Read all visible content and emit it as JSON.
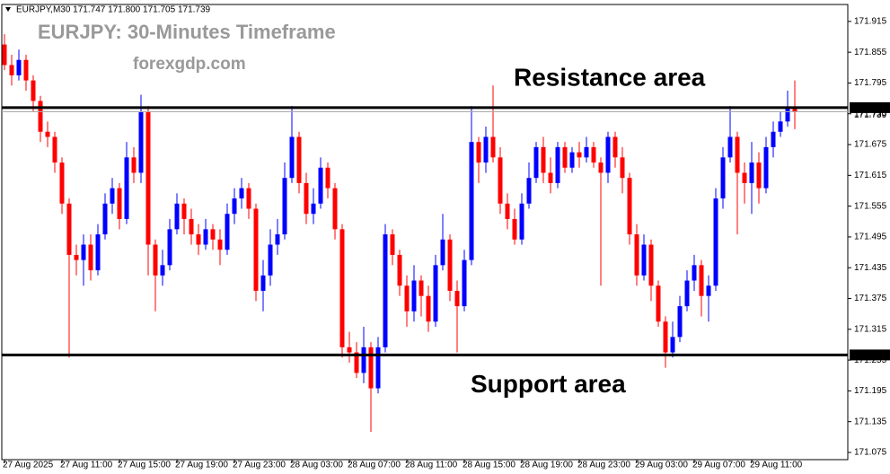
{
  "chart_data": {
    "type": "candlestick",
    "header": "EURJPY,M30  171.747 171.800 171.705 171.739",
    "title": "EURJPY: 30-Minutes Timeframe",
    "subtitle": "forexgdp.com",
    "bull_color": "#0000ff",
    "bear_color": "#ff0000",
    "ylim": [
      171.061,
      171.948
    ],
    "yticks": [
      171.915,
      171.855,
      171.795,
      171.735,
      171.675,
      171.615,
      171.555,
      171.495,
      171.435,
      171.375,
      171.315,
      171.255,
      171.195,
      171.135,
      171.075
    ],
    "levels": [
      {
        "label": "Resistance area",
        "value": 171.747
      },
      {
        "label": "Support area",
        "value": 171.265
      }
    ],
    "bid": 171.739,
    "categories": [
      "27 Aug 2025",
      null,
      null,
      null,
      null,
      null,
      null,
      null,
      "27 Aug 11:00",
      null,
      null,
      null,
      null,
      null,
      null,
      null,
      "27 Aug 15:00",
      null,
      null,
      null,
      null,
      null,
      null,
      null,
      "27 Aug 19:00",
      null,
      null,
      null,
      null,
      null,
      null,
      null,
      "27 Aug 23:00",
      null,
      null,
      null,
      null,
      null,
      null,
      null,
      "28 Aug 03:00",
      null,
      null,
      null,
      null,
      null,
      null,
      null,
      "28 Aug 07:00",
      null,
      null,
      null,
      null,
      null,
      null,
      null,
      "28 Aug 11:00",
      null,
      null,
      null,
      null,
      null,
      null,
      null,
      "28 Aug 15:00",
      null,
      null,
      null,
      null,
      null,
      null,
      null,
      "28 Aug 19:00",
      null,
      null,
      null,
      null,
      null,
      null,
      null,
      "28 Aug 23:00",
      null,
      null,
      null,
      null,
      null,
      null,
      null,
      "29 Aug 03:00",
      null,
      null,
      null,
      null,
      null,
      null,
      null,
      "29 Aug 07:00",
      null,
      null,
      null,
      null,
      null,
      null,
      null,
      "29 Aug 11:00",
      null,
      null,
      null,
      null,
      null,
      null
    ],
    "ohlc": [
      [
        171.87,
        171.89,
        171.82,
        171.83
      ],
      [
        171.83,
        171.85,
        171.79,
        171.81
      ],
      [
        171.81,
        171.86,
        171.8,
        171.84
      ],
      [
        171.84,
        171.85,
        171.78,
        171.8
      ],
      [
        171.8,
        171.81,
        171.74,
        171.76
      ],
      [
        171.76,
        171.77,
        171.68,
        171.7
      ],
      [
        171.7,
        171.72,
        171.67,
        171.69
      ],
      [
        171.69,
        171.7,
        171.62,
        171.64
      ],
      [
        171.64,
        171.65,
        171.54,
        171.56
      ],
      [
        171.56,
        171.57,
        171.26,
        171.46
      ],
      [
        171.46,
        171.48,
        171.42,
        171.45
      ],
      [
        171.45,
        171.5,
        171.4,
        171.48
      ],
      [
        171.48,
        171.5,
        171.41,
        171.43
      ],
      [
        171.43,
        171.52,
        171.42,
        171.5
      ],
      [
        171.5,
        171.58,
        171.49,
        171.56
      ],
      [
        171.56,
        171.61,
        171.54,
        171.59
      ],
      [
        171.59,
        171.6,
        171.51,
        171.53
      ],
      [
        171.53,
        171.68,
        171.52,
        171.65
      ],
      [
        171.65,
        171.67,
        171.6,
        171.62
      ],
      [
        171.62,
        171.772,
        171.6,
        171.74
      ],
      [
        171.74,
        171.75,
        171.42,
        171.48
      ],
      [
        171.48,
        171.49,
        171.35,
        171.42
      ],
      [
        171.42,
        171.47,
        171.4,
        171.44
      ],
      [
        171.44,
        171.53,
        171.43,
        171.51
      ],
      [
        171.51,
        171.58,
        171.5,
        171.56
      ],
      [
        171.56,
        171.57,
        171.5,
        171.53
      ],
      [
        171.53,
        171.55,
        171.48,
        171.5
      ],
      [
        171.5,
        171.52,
        171.46,
        171.48
      ],
      [
        171.48,
        171.53,
        171.47,
        171.51
      ],
      [
        171.51,
        171.52,
        171.47,
        171.49
      ],
      [
        171.49,
        171.51,
        171.44,
        171.47
      ],
      [
        171.47,
        171.56,
        171.46,
        171.54
      ],
      [
        171.54,
        171.59,
        171.52,
        171.57
      ],
      [
        171.57,
        171.61,
        171.55,
        171.59
      ],
      [
        171.59,
        171.6,
        171.53,
        171.55
      ],
      [
        171.55,
        171.56,
        171.37,
        171.39
      ],
      [
        171.39,
        171.45,
        171.35,
        171.42
      ],
      [
        171.42,
        171.51,
        171.4,
        171.48
      ],
      [
        171.48,
        171.53,
        171.46,
        171.5
      ],
      [
        171.5,
        171.64,
        171.49,
        171.61
      ],
      [
        171.61,
        171.75,
        171.6,
        171.69
      ],
      [
        171.69,
        171.7,
        171.58,
        171.6
      ],
      [
        171.6,
        171.62,
        171.52,
        171.54
      ],
      [
        171.54,
        171.59,
        171.52,
        171.56
      ],
      [
        171.56,
        171.65,
        171.55,
        171.63
      ],
      [
        171.63,
        171.64,
        171.57,
        171.59
      ],
      [
        171.59,
        171.6,
        171.49,
        171.51
      ],
      [
        171.51,
        171.52,
        171.26,
        171.28
      ],
      [
        171.28,
        171.31,
        171.25,
        171.27
      ],
      [
        171.27,
        171.29,
        171.22,
        171.23
      ],
      [
        171.23,
        171.32,
        171.21,
        171.28
      ],
      [
        171.28,
        171.29,
        171.115,
        171.2
      ],
      [
        171.2,
        171.3,
        171.19,
        171.28
      ],
      [
        171.28,
        171.52,
        171.27,
        171.5
      ],
      [
        171.5,
        171.51,
        171.44,
        171.46
      ],
      [
        171.46,
        171.47,
        171.38,
        171.4
      ],
      [
        171.4,
        171.42,
        171.32,
        171.35
      ],
      [
        171.35,
        171.44,
        171.33,
        171.41
      ],
      [
        171.41,
        171.42,
        171.34,
        171.38
      ],
      [
        171.38,
        171.4,
        171.31,
        171.33
      ],
      [
        171.33,
        171.46,
        171.32,
        171.44
      ],
      [
        171.44,
        171.54,
        171.43,
        171.49
      ],
      [
        171.49,
        171.5,
        171.37,
        171.39
      ],
      [
        171.39,
        171.41,
        171.27,
        171.36
      ],
      [
        171.36,
        171.47,
        171.35,
        171.45
      ],
      [
        171.45,
        171.75,
        171.44,
        171.68
      ],
      [
        171.68,
        171.69,
        171.6,
        171.64
      ],
      [
        171.64,
        171.71,
        171.62,
        171.69
      ],
      [
        171.69,
        171.79,
        171.64,
        171.65
      ],
      [
        171.65,
        171.67,
        171.54,
        171.56
      ],
      [
        171.56,
        171.58,
        171.51,
        171.53
      ],
      [
        171.53,
        171.55,
        171.48,
        171.49
      ],
      [
        171.49,
        171.58,
        171.48,
        171.56
      ],
      [
        171.56,
        171.64,
        171.55,
        171.61
      ],
      [
        171.61,
        171.68,
        171.6,
        171.67
      ],
      [
        171.67,
        171.69,
        171.6,
        171.62
      ],
      [
        171.62,
        171.65,
        171.58,
        171.6
      ],
      [
        171.6,
        171.68,
        171.59,
        171.67
      ],
      [
        171.67,
        171.68,
        171.62,
        171.63
      ],
      [
        171.63,
        171.67,
        171.62,
        171.66
      ],
      [
        171.66,
        171.68,
        171.63,
        171.65
      ],
      [
        171.65,
        171.69,
        171.64,
        171.67
      ],
      [
        171.67,
        171.68,
        171.63,
        171.64
      ],
      [
        171.64,
        171.65,
        171.4,
        171.62
      ],
      [
        171.62,
        171.7,
        171.6,
        171.69
      ],
      [
        171.69,
        171.7,
        171.63,
        171.65
      ],
      [
        171.65,
        171.67,
        171.58,
        171.61
      ],
      [
        171.61,
        171.62,
        171.48,
        171.5
      ],
      [
        171.5,
        171.52,
        171.4,
        171.42
      ],
      [
        171.42,
        171.5,
        171.41,
        171.48
      ],
      [
        171.48,
        171.49,
        171.37,
        171.4
      ],
      [
        171.4,
        171.41,
        171.32,
        171.33
      ],
      [
        171.33,
        171.34,
        171.24,
        171.27
      ],
      [
        171.27,
        171.33,
        171.26,
        171.3
      ],
      [
        171.3,
        171.38,
        171.29,
        171.36
      ],
      [
        171.36,
        171.43,
        171.35,
        171.41
      ],
      [
        171.41,
        171.46,
        171.39,
        171.44
      ],
      [
        171.44,
        171.45,
        171.34,
        171.38
      ],
      [
        171.38,
        171.42,
        171.33,
        171.4
      ],
      [
        171.4,
        171.59,
        171.39,
        171.57
      ],
      [
        171.57,
        171.67,
        171.55,
        171.65
      ],
      [
        171.65,
        171.75,
        171.64,
        171.69
      ],
      [
        171.69,
        171.7,
        171.5,
        171.62
      ],
      [
        171.62,
        171.64,
        171.56,
        171.6
      ],
      [
        171.6,
        171.68,
        171.54,
        171.64
      ],
      [
        171.64,
        171.66,
        171.56,
        171.59
      ],
      [
        171.59,
        171.69,
        171.58,
        171.67
      ],
      [
        171.67,
        171.72,
        171.65,
        171.7
      ],
      [
        171.7,
        171.74,
        171.69,
        171.72
      ],
      [
        171.72,
        171.78,
        171.71,
        171.747
      ],
      [
        171.747,
        171.8,
        171.705,
        171.739
      ]
    ]
  }
}
